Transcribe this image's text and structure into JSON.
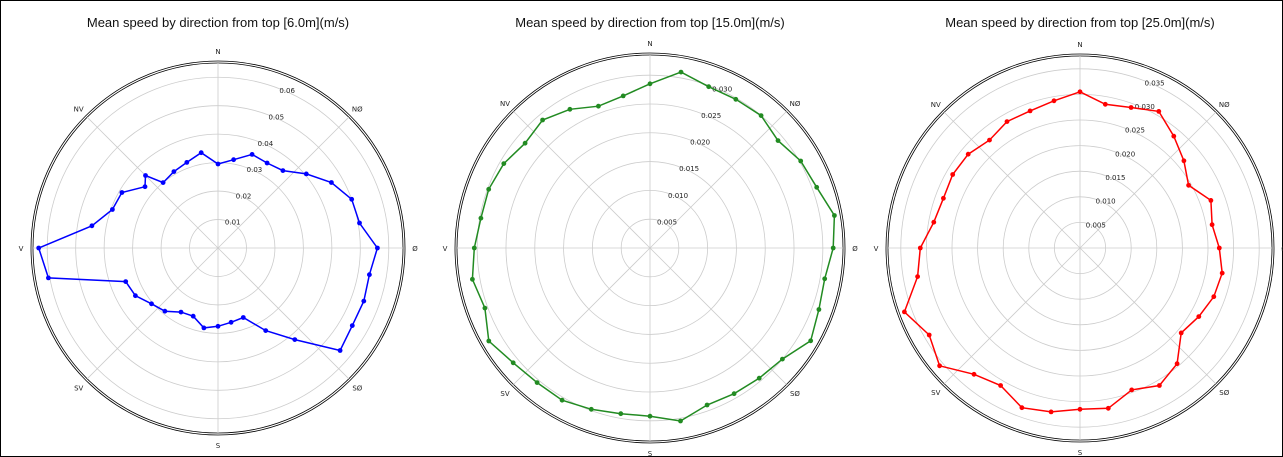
{
  "chart_data": [
    {
      "type": "polar-line",
      "title": "Mean speed by direction from top [6.0m](m/s)",
      "directions": [
        "N",
        "NØ",
        "Ø",
        "SØ",
        "S",
        "SV",
        "V",
        "NV"
      ],
      "rmax": 0.065,
      "rticks": [
        0.01,
        0.02,
        0.03,
        0.04,
        0.05,
        0.06
      ],
      "tick_labels": [
        "0.01",
        "0.02",
        "0.03",
        "0.04",
        "0.05",
        "0.06"
      ],
      "color": "#0000ff",
      "angles_deg": [
        0,
        10,
        20,
        30,
        40,
        50,
        60,
        70,
        80,
        90,
        100,
        110,
        120,
        130,
        140,
        150,
        160,
        170,
        180,
        190,
        200,
        210,
        220,
        230,
        240,
        250,
        260,
        270,
        280,
        290,
        300,
        310,
        315,
        320,
        330,
        340,
        350
      ],
      "values": [
        0.0295,
        0.0315,
        0.035,
        0.0345,
        0.0355,
        0.0405,
        0.046,
        0.05,
        0.0505,
        0.056,
        0.054,
        0.0545,
        0.0545,
        0.056,
        0.042,
        0.0335,
        0.026,
        0.0265,
        0.0275,
        0.0285,
        0.0255,
        0.026,
        0.029,
        0.0305,
        0.0335,
        0.0345,
        0.0605,
        0.063,
        0.045,
        0.0395,
        0.039,
        0.0335,
        0.036,
        0.03,
        0.031,
        0.032,
        0.034
      ]
    },
    {
      "type": "polar-line",
      "title": "Mean speed by direction from top [15.0m](m/s)",
      "directions": [
        "N",
        "NØ",
        "Ø",
        "SØ",
        "S",
        "SV",
        "V",
        "NV"
      ],
      "rmax": 0.0335,
      "rticks": [
        0.005,
        0.01,
        0.015,
        0.02,
        0.025,
        0.03
      ],
      "tick_labels": [
        "0.005",
        "0.010",
        "0.015",
        "0.020",
        "0.025",
        "0.030"
      ],
      "color": "#228B22",
      "angles_deg": [
        0,
        10,
        20,
        30,
        40,
        50,
        60,
        70,
        80,
        90,
        100,
        110,
        120,
        130,
        140,
        150,
        160,
        170,
        180,
        190,
        200,
        210,
        220,
        230,
        240,
        250,
        260,
        270,
        280,
        290,
        300,
        310,
        320,
        330,
        340,
        350
      ],
      "values": [
        0.0285,
        0.031,
        0.0298,
        0.0298,
        0.03,
        0.029,
        0.0302,
        0.0308,
        0.0325,
        0.0318,
        0.0308,
        0.0312,
        0.0322,
        0.03,
        0.0295,
        0.0292,
        0.029,
        0.0305,
        0.0292,
        0.0292,
        0.0298,
        0.0305,
        0.0305,
        0.031,
        0.0323,
        0.0305,
        0.0313,
        0.0305,
        0.0298,
        0.0298,
        0.0293,
        0.0283,
        0.029,
        0.0278,
        0.0262,
        0.0268
      ]
    },
    {
      "type": "polar-line",
      "title": "Mean speed by direction from top [25.0m](m/s)",
      "directions": [
        "N",
        "NØ",
        "Ø",
        "SØ",
        "S",
        "SV",
        "V",
        "NV"
      ],
      "rmax": 0.0375,
      "rticks": [
        0.005,
        0.01,
        0.015,
        0.02,
        0.025,
        0.03,
        0.035
      ],
      "tick_labels": [
        "0.005",
        "0.010",
        "0.015",
        "0.020",
        "0.025",
        "0.030",
        "0.035"
      ],
      "color": "#ff0000",
      "angles_deg": [
        0,
        10,
        20,
        30,
        40,
        50,
        60,
        70,
        80,
        90,
        100,
        110,
        120,
        130,
        140,
        150,
        160,
        170,
        180,
        190,
        200,
        210,
        220,
        230,
        240,
        250,
        260,
        270,
        280,
        290,
        300,
        310,
        320,
        330,
        340,
        350
      ],
      "values": [
        0.0305,
        0.0285,
        0.0292,
        0.0308,
        0.0285,
        0.0265,
        0.0245,
        0.0272,
        0.0262,
        0.0272,
        0.0282,
        0.0278,
        0.0268,
        0.0258,
        0.0295,
        0.031,
        0.0295,
        0.0318,
        0.0315,
        0.0325,
        0.0332,
        0.031,
        0.0322,
        0.0358,
        0.034,
        0.0365,
        0.0322,
        0.0312,
        0.029,
        0.0284,
        0.0287,
        0.0285,
        0.0275,
        0.0285,
        0.0285,
        0.0292
      ]
    }
  ]
}
